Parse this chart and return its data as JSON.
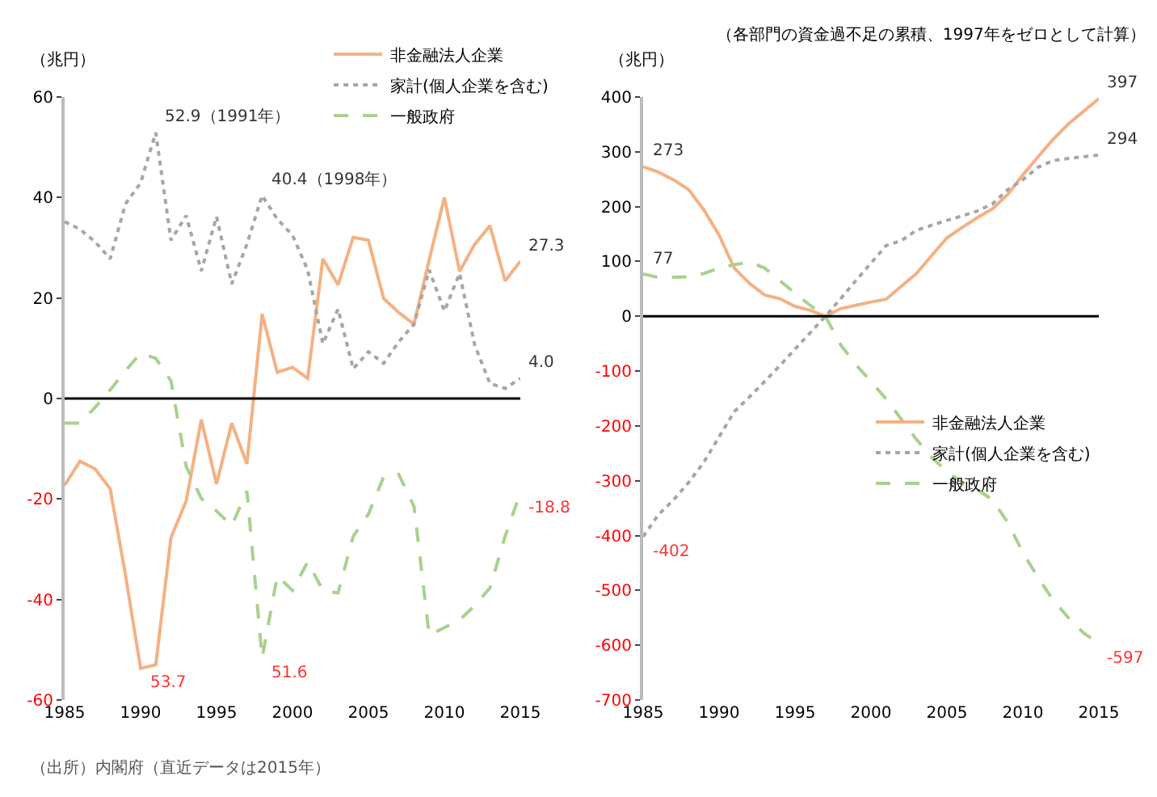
{
  "chart_data": [
    {
      "type": "line",
      "ylabel": "（兆円）",
      "x": [
        1985,
        1986,
        1987,
        1988,
        1989,
        1990,
        1991,
        1992,
        1993,
        1994,
        1995,
        1996,
        1997,
        1998,
        1999,
        2000,
        2001,
        2002,
        2003,
        2004,
        2005,
        2006,
        2007,
        2008,
        2009,
        2010,
        2011,
        2012,
        2013,
        2014,
        2015
      ],
      "series": [
        {
          "name": "非金融法人企業",
          "color": "#f4b183",
          "line_style": "solid",
          "values": [
            -17.3,
            -12.5,
            -14,
            -18,
            -35,
            -53.7,
            -53.0,
            -27.7,
            -20.4,
            -4.2,
            -17,
            -4.9,
            -13,
            16.8,
            5.2,
            6.2,
            4.0,
            27.8,
            22.6,
            32.1,
            31.5,
            19.9,
            17.1,
            14.8,
            27.6,
            40.0,
            25.3,
            30.7,
            34.4,
            23.4,
            27.3
          ]
        },
        {
          "name": "家計(個人企業を含む)",
          "color": "#a6a6a6",
          "line_style": "dotted",
          "values": [
            35.2,
            33.7,
            31.2,
            27.8,
            38.7,
            42.9,
            52.9,
            31.5,
            36.4,
            25.4,
            36.2,
            22.8,
            30.7,
            40.4,
            35.7,
            32.5,
            25.6,
            10.9,
            17.8,
            5.9,
            9.3,
            7.0,
            11.3,
            14.8,
            25.6,
            17.4,
            24.9,
            10.6,
            3.0,
            2.0,
            4.0
          ]
        },
        {
          "name": "一般政府",
          "color": "#a9d18e",
          "line_style": "dashed",
          "values": [
            -4.9,
            -4.9,
            -1.8,
            1.7,
            5.5,
            9.0,
            8.0,
            3.5,
            -13.5,
            -19.9,
            -22.4,
            -25.3,
            -18.4,
            -51.6,
            -35.3,
            -38.2,
            -32.5,
            -38.2,
            -38.7,
            -27.4,
            -23,
            -15.6,
            -15.1,
            -21.5,
            -47.1,
            -45.6,
            -44.1,
            -41.2,
            -37.7,
            -27.4,
            -18.8
          ]
        }
      ],
      "xlim": [
        1985,
        2015
      ],
      "xticks": [
        1985,
        1990,
        1995,
        2000,
        2005,
        2010,
        2015
      ],
      "ylim": [
        -60,
        60
      ],
      "yticks": [
        -60,
        -40,
        -20,
        0,
        20,
        40,
        60
      ],
      "grid": false,
      "legend": "top right",
      "ref_lines": [
        {
          "axis": "y",
          "value": 0,
          "color": "#000000"
        }
      ],
      "annotations": [
        {
          "text": "52.9（1991年）",
          "x": 1991,
          "y": 52.9
        },
        {
          "text": "40.4（1998年）",
          "x": 1998,
          "y": 40.4
        },
        {
          "text": "27.3",
          "x": 2015,
          "y": 27.3
        },
        {
          "text": "4.0",
          "x": 2015,
          "y": 4.0
        },
        {
          "text": "53.7",
          "x": 1990,
          "y": -53.7
        },
        {
          "text": "51.6",
          "x": 1998,
          "y": -51.6
        },
        {
          "text": "-18.8",
          "x": 2015,
          "y": -18.8
        },
        "（出所）内閣府（直近データは2015年）"
      ]
    },
    {
      "type": "line",
      "title": "（各部門の資金過不足の累積、1997年をゼロとして計算）",
      "ylabel": "（兆円）",
      "x": [
        1985,
        1986,
        1987,
        1988,
        1989,
        1990,
        1991,
        1992,
        1993,
        1994,
        1995,
        1996,
        1997,
        1998,
        1999,
        2000,
        2001,
        2002,
        2003,
        2004,
        2005,
        2006,
        2007,
        2008,
        2009,
        2010,
        2011,
        2012,
        2013,
        2014,
        2015
      ],
      "series": [
        {
          "name": "非金融法人企業",
          "color": "#f4b183",
          "line_style": "solid",
          "values": [
            273,
            263,
            249,
            231,
            194,
            148,
            88,
            60,
            39,
            32,
            18,
            11,
            0,
            14,
            20,
            26,
            31,
            55,
            78,
            111,
            143,
            162,
            180,
            196,
            222,
            258,
            291,
            323,
            351,
            374,
            397
          ]
        },
        {
          "name": "家計(個人企業を含む)",
          "color": "#a6a6a6",
          "line_style": "dotted",
          "values": [
            -402,
            -362,
            -335,
            -303,
            -266,
            -220,
            -174,
            -147,
            -119,
            -90,
            -60,
            -30,
            0,
            32,
            65,
            97,
            129,
            138,
            157,
            166,
            175,
            183,
            192,
            205,
            231,
            249,
            272,
            284,
            288,
            291,
            294
          ]
        },
        {
          "name": "一般政府",
          "color": "#a9d18e",
          "line_style": "dashed",
          "values": [
            77,
            71,
            71,
            72,
            78,
            88,
            94,
            99,
            88,
            65,
            42,
            20,
            0,
            -52,
            -88,
            -119,
            -151,
            -188,
            -225,
            -257,
            -284,
            -303,
            -316,
            -335,
            -376,
            -431,
            -477,
            -518,
            -550,
            -578,
            -597
          ]
        }
      ],
      "xlim": [
        1985,
        2015
      ],
      "xticks": [
        1985,
        1990,
        1995,
        2000,
        2005,
        2010,
        2015
      ],
      "ylim": [
        -700,
        400
      ],
      "yticks": [
        -700,
        -600,
        -500,
        -400,
        -300,
        -200,
        -100,
        0,
        100,
        200,
        300,
        400
      ],
      "grid": false,
      "legend": "right",
      "ref_lines": [
        {
          "axis": "y",
          "value": 0,
          "color": "#000000"
        }
      ],
      "annotations": [
        {
          "text": "273",
          "x": 1985,
          "y": 273
        },
        {
          "text": "77",
          "x": 1985,
          "y": 77
        },
        {
          "text": "-402",
          "x": 1985,
          "y": -402
        },
        {
          "text": "397",
          "x": 2015,
          "y": 397
        },
        {
          "text": "294",
          "x": 2015,
          "y": 294
        },
        {
          "text": "-597",
          "x": 2015,
          "y": -597
        }
      ]
    }
  ]
}
